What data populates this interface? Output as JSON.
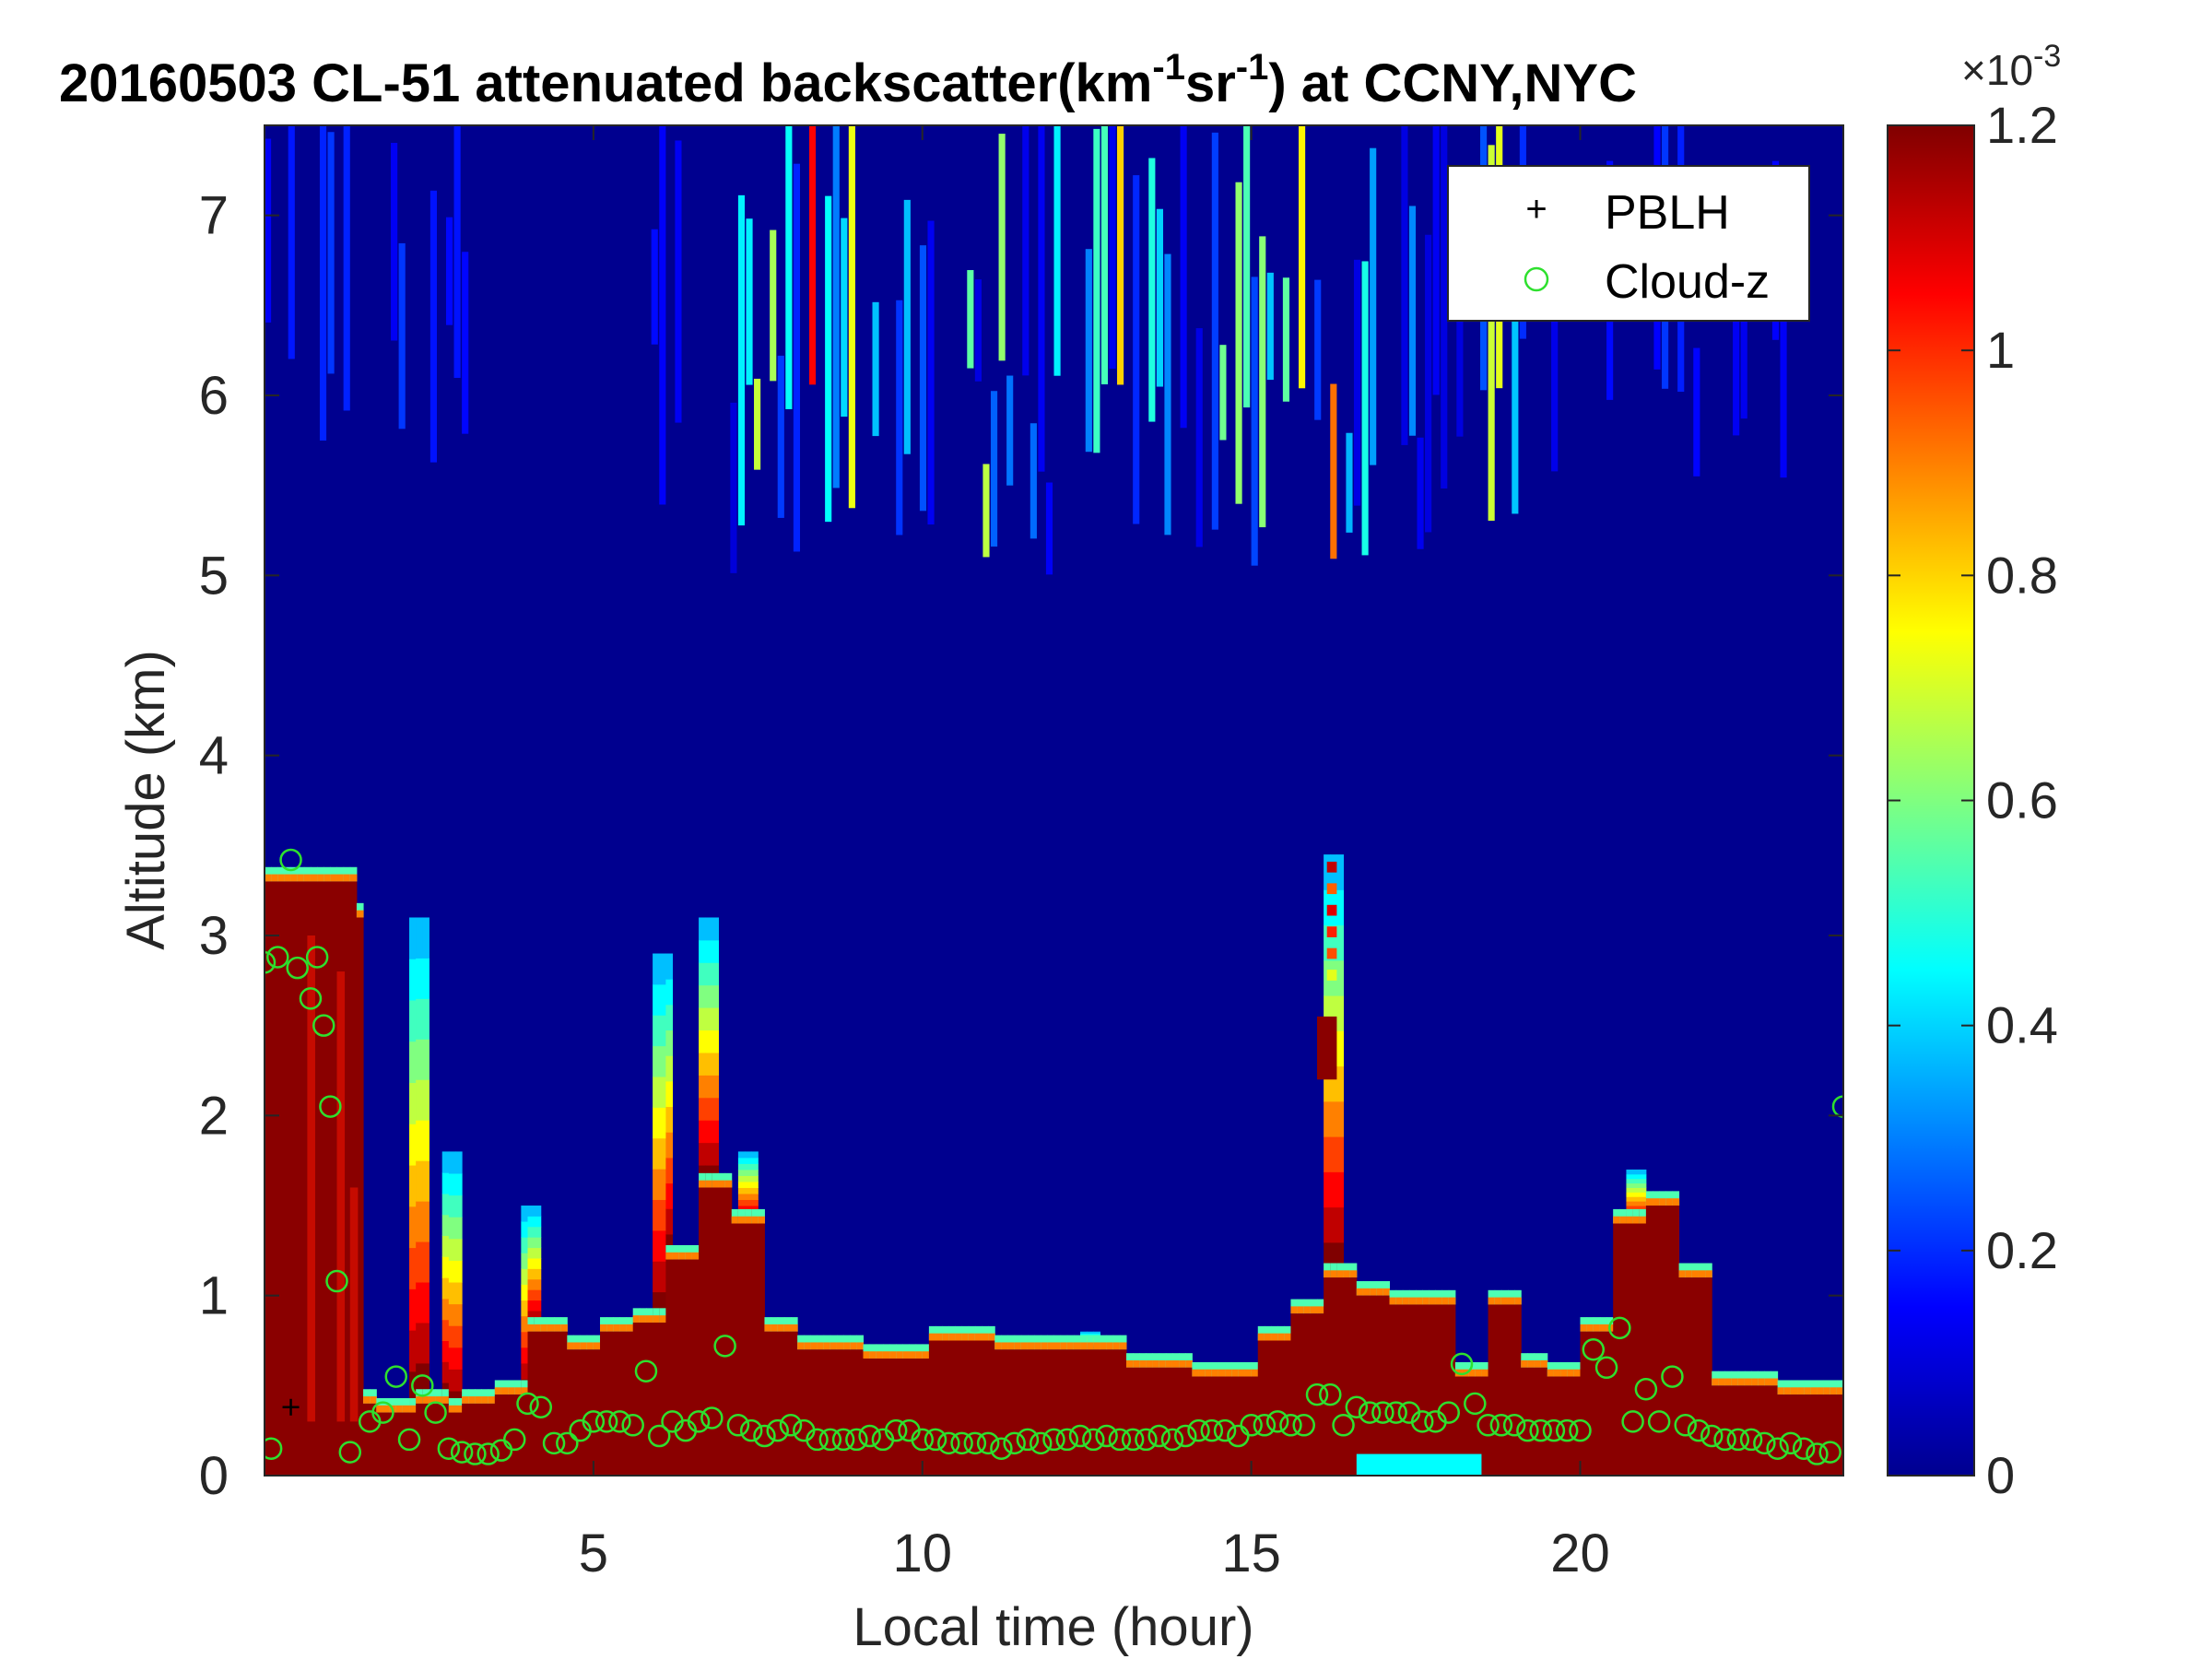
{
  "chart_data": {
    "type": "heatmap",
    "title": "20160503  CL-51 attenuated backscatter(km",
    "title_sup1": "-1",
    "title_mid": "sr",
    "title_sup2": "-1",
    "title_end": ") at CCNY,NYC",
    "xlabel": "Local time (hour)",
    "ylabel": "Altitude (km)",
    "xlim": [
      0,
      24
    ],
    "ylim": [
      0,
      7.5
    ],
    "x_ticks": [
      5,
      10,
      15,
      20
    ],
    "x_tick_labels": [
      "5",
      "10",
      "15",
      "20"
    ],
    "y_ticks": [
      0,
      1,
      2,
      3,
      4,
      5,
      6,
      7
    ],
    "y_tick_labels": [
      "0",
      "1",
      "2",
      "3",
      "4",
      "5",
      "6",
      "7"
    ],
    "colorbar": {
      "colormap": "jet",
      "clim": [
        0,
        0.0012
      ],
      "ticks": [
        0,
        0.2,
        0.4,
        0.6,
        0.8,
        1.0,
        1.2
      ],
      "tick_labels": [
        "0",
        "0.2",
        "0.4",
        "0.6",
        "0.8",
        "1",
        "1.2"
      ],
      "multiplier_base": "×10",
      "multiplier_exp": "-3"
    },
    "legend": {
      "placement": "top-right",
      "entries": [
        {
          "marker": "+",
          "label": "PBLH",
          "color": "#000000"
        },
        {
          "marker": "o",
          "label": "Cloud-z",
          "color": "#2ee02e"
        }
      ]
    },
    "aerosol_layer_top_km": {
      "x": [
        0.0,
        1.4,
        1.5,
        1.7,
        2.3,
        2.8,
        3.0,
        3.5,
        4.0,
        4.5,
        5.0,
        5.5,
        6.0,
        6.5,
        7.0,
        7.5,
        8.0,
        9.0,
        10.0,
        11.0,
        12.0,
        13.0,
        14.0,
        15.0,
        15.5,
        16.0,
        16.5,
        17.0,
        17.5,
        18.0,
        18.5,
        19.0,
        19.5,
        20.0,
        20.5,
        21.0,
        21.5,
        22.0,
        23.0,
        24.0
      ],
      "y": [
        3.3,
        3.1,
        0.4,
        0.35,
        0.4,
        0.35,
        0.4,
        0.45,
        0.8,
        0.7,
        0.8,
        0.85,
        1.2,
        1.6,
        1.4,
        0.8,
        0.7,
        0.65,
        0.75,
        0.7,
        0.7,
        0.6,
        0.55,
        0.75,
        0.9,
        1.1,
        1.0,
        0.95,
        0.95,
        0.55,
        0.95,
        0.6,
        0.55,
        0.8,
        1.4,
        1.5,
        1.1,
        0.5,
        0.45,
        0.3
      ]
    },
    "plumes": [
      {
        "x": 2.3,
        "top_km": 3.1
      },
      {
        "x": 2.8,
        "top_km": 1.8
      },
      {
        "x": 4.0,
        "top_km": 1.5
      },
      {
        "x": 6.0,
        "top_km": 2.9
      },
      {
        "x": 6.7,
        "top_km": 3.1
      },
      {
        "x": 7.3,
        "top_km": 1.8
      },
      {
        "x": 12.5,
        "top_km": 0.8
      },
      {
        "x": 16.2,
        "top_km": 3.45
      },
      {
        "x": 20.8,
        "top_km": 1.7
      }
    ],
    "elevated_layer": {
      "x": [
        16.0,
        16.3
      ],
      "y_km": [
        2.2,
        2.55
      ]
    },
    "surface_patch": {
      "x": [
        16.6,
        18.5
      ],
      "y_km": [
        0.0,
        0.12
      ],
      "value": 0.00045
    },
    "upper_cloud_band": {
      "x_range": [
        6.5,
        19.0
      ],
      "y_range_km": [
        5.0,
        7.5
      ],
      "value_range": [
        0.0001,
        0.0011
      ]
    },
    "pblh": {
      "x": [
        0.4
      ],
      "y": [
        0.38
      ]
    },
    "cloud_z": {
      "x": [
        0.0,
        0.1,
        0.2,
        0.4,
        0.5,
        0.7,
        0.8,
        0.9,
        1.0,
        1.1,
        1.3,
        1.6,
        1.8,
        2.0,
        2.2,
        2.4,
        2.6,
        2.8,
        3.0,
        3.2,
        3.4,
        3.6,
        3.8,
        4.0,
        4.2,
        4.4,
        4.6,
        4.8,
        5.0,
        5.2,
        5.4,
        5.6,
        5.8,
        6.0,
        6.2,
        6.4,
        6.6,
        6.8,
        7.0,
        7.2,
        7.4,
        7.6,
        7.8,
        8.0,
        8.2,
        8.4,
        8.6,
        8.8,
        9.0,
        9.2,
        9.4,
        9.6,
        9.8,
        10.0,
        10.2,
        10.4,
        10.6,
        10.8,
        11.0,
        11.2,
        11.4,
        11.6,
        11.8,
        12.0,
        12.2,
        12.4,
        12.6,
        12.8,
        13.0,
        13.2,
        13.4,
        13.6,
        13.8,
        14.0,
        14.2,
        14.4,
        14.6,
        14.8,
        15.0,
        15.2,
        15.4,
        15.6,
        15.8,
        16.0,
        16.2,
        16.4,
        16.6,
        16.8,
        17.0,
        17.2,
        17.4,
        17.6,
        17.8,
        18.0,
        18.2,
        18.4,
        18.6,
        18.8,
        19.0,
        19.2,
        19.4,
        19.6,
        19.8,
        20.0,
        20.2,
        20.4,
        20.6,
        20.8,
        21.0,
        21.2,
        21.4,
        21.6,
        21.8,
        22.0,
        22.2,
        22.4,
        22.6,
        22.8,
        23.0,
        23.2,
        23.4,
        23.6,
        23.8,
        24.0
      ],
      "y": [
        2.85,
        0.15,
        2.88,
        3.42,
        2.82,
        2.65,
        2.88,
        2.5,
        2.05,
        1.08,
        0.13,
        0.3,
        0.35,
        0.55,
        0.2,
        0.5,
        0.35,
        0.15,
        0.13,
        0.12,
        0.12,
        0.14,
        0.2,
        0.4,
        0.38,
        0.18,
        0.18,
        0.25,
        0.3,
        0.3,
        0.3,
        0.28,
        0.58,
        0.22,
        0.3,
        0.25,
        0.3,
        0.32,
        0.72,
        0.28,
        0.25,
        0.22,
        0.25,
        0.28,
        0.25,
        0.2,
        0.2,
        0.2,
        0.2,
        0.22,
        0.2,
        0.25,
        0.25,
        0.2,
        0.2,
        0.18,
        0.18,
        0.18,
        0.18,
        0.15,
        0.18,
        0.2,
        0.18,
        0.2,
        0.2,
        0.22,
        0.2,
        0.22,
        0.2,
        0.2,
        0.2,
        0.22,
        0.2,
        0.22,
        0.25,
        0.25,
        0.25,
        0.22,
        0.28,
        0.28,
        0.3,
        0.28,
        0.28,
        0.45,
        0.45,
        0.28,
        0.38,
        0.35,
        0.35,
        0.35,
        0.35,
        0.3,
        0.3,
        0.35,
        0.62,
        0.4,
        0.28,
        0.28,
        0.28,
        0.25,
        0.25,
        0.25,
        0.25,
        0.25,
        0.7,
        0.6,
        0.82,
        0.3,
        0.48,
        0.3,
        0.55,
        0.28,
        0.25,
        0.22,
        0.2,
        0.2,
        0.2,
        0.18,
        0.15,
        0.18,
        0.15,
        0.12,
        0.13,
        2.05
      ]
    }
  }
}
